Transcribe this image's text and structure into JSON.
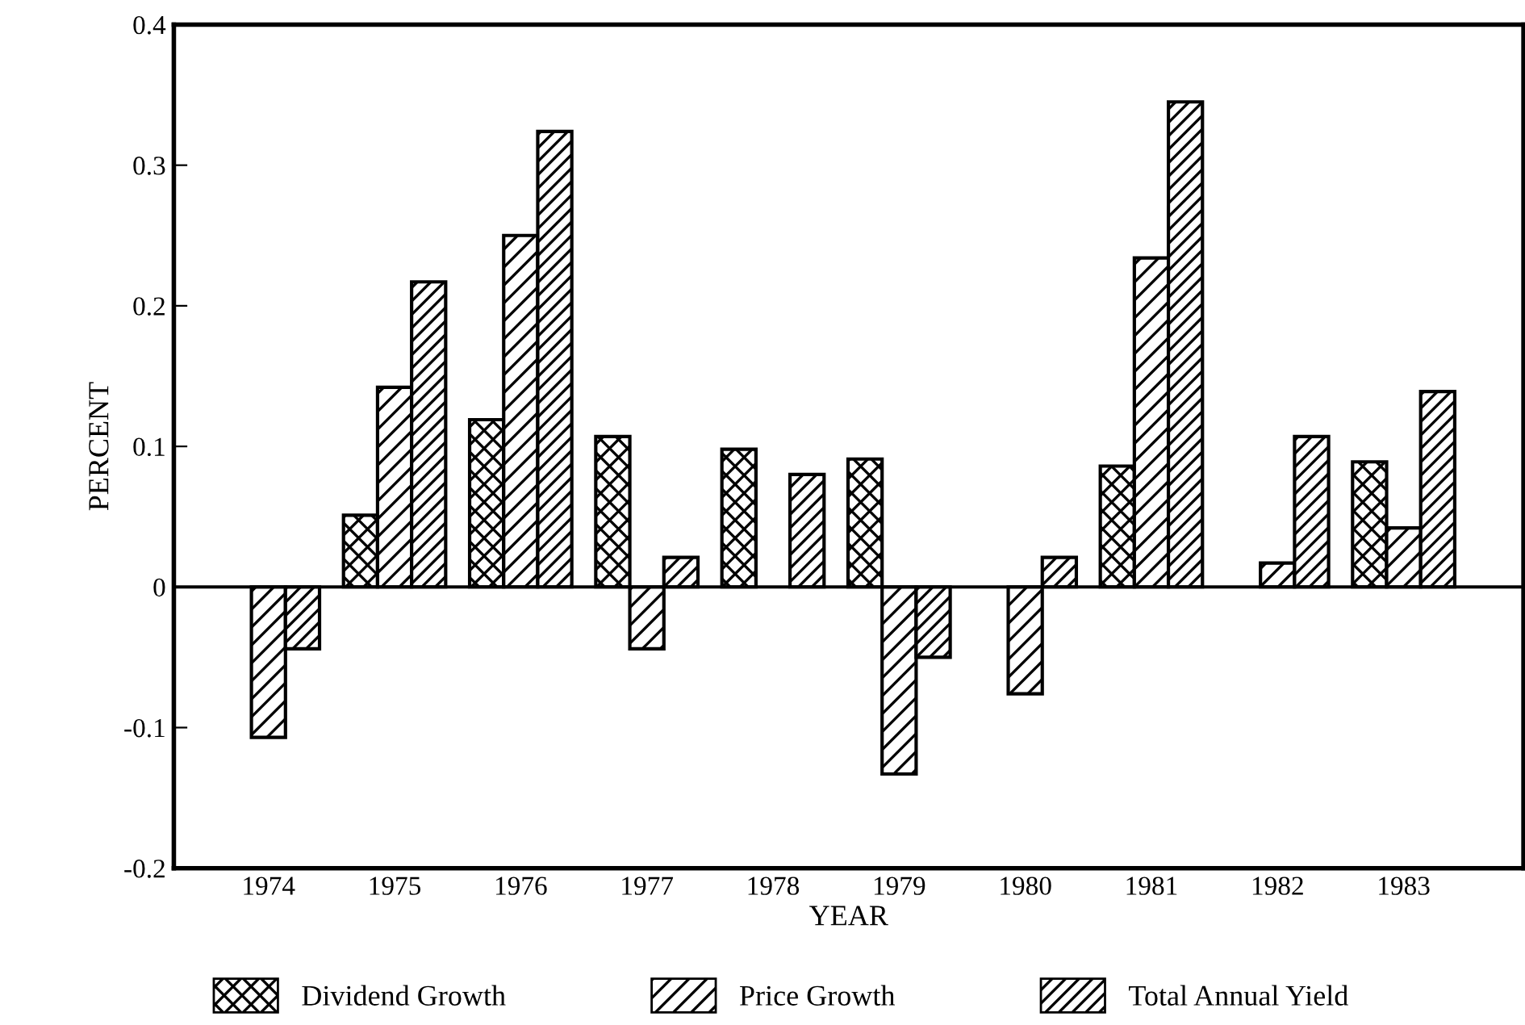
{
  "chart_data": {
    "type": "bar",
    "xlabel": "YEAR",
    "ylabel": "PERCENT",
    "categories": [
      "1974",
      "1975",
      "1976",
      "1977",
      "1978",
      "1979",
      "1980",
      "1981",
      "1982",
      "1983"
    ],
    "series": [
      {
        "name": "Dividend Growth",
        "color": "#000000",
        "values": [
          null,
          0.051,
          0.119,
          0.107,
          0.098,
          0.091,
          null,
          0.086,
          null,
          0.089
        ]
      },
      {
        "name": "Price Growth",
        "color": "#000000",
        "values": [
          -0.107,
          0.142,
          0.25,
          -0.044,
          null,
          -0.133,
          -0.076,
          0.234,
          0.017,
          0.042
        ]
      },
      {
        "name": "Total Annual Yield",
        "color": "#000000",
        "values": [
          -0.044,
          0.217,
          0.324,
          0.021,
          0.08,
          -0.05,
          0.021,
          0.345,
          0.107,
          0.139
        ]
      }
    ],
    "ylim": [
      -0.2,
      0.4
    ],
    "yticks": [
      -0.2,
      -0.1,
      0,
      0.1,
      0.2,
      0.3,
      0.4
    ],
    "ref_lines": [
      {
        "axis": "y",
        "value": 0,
        "color": "#000000"
      }
    ],
    "grid": false,
    "legend": "bottom"
  }
}
